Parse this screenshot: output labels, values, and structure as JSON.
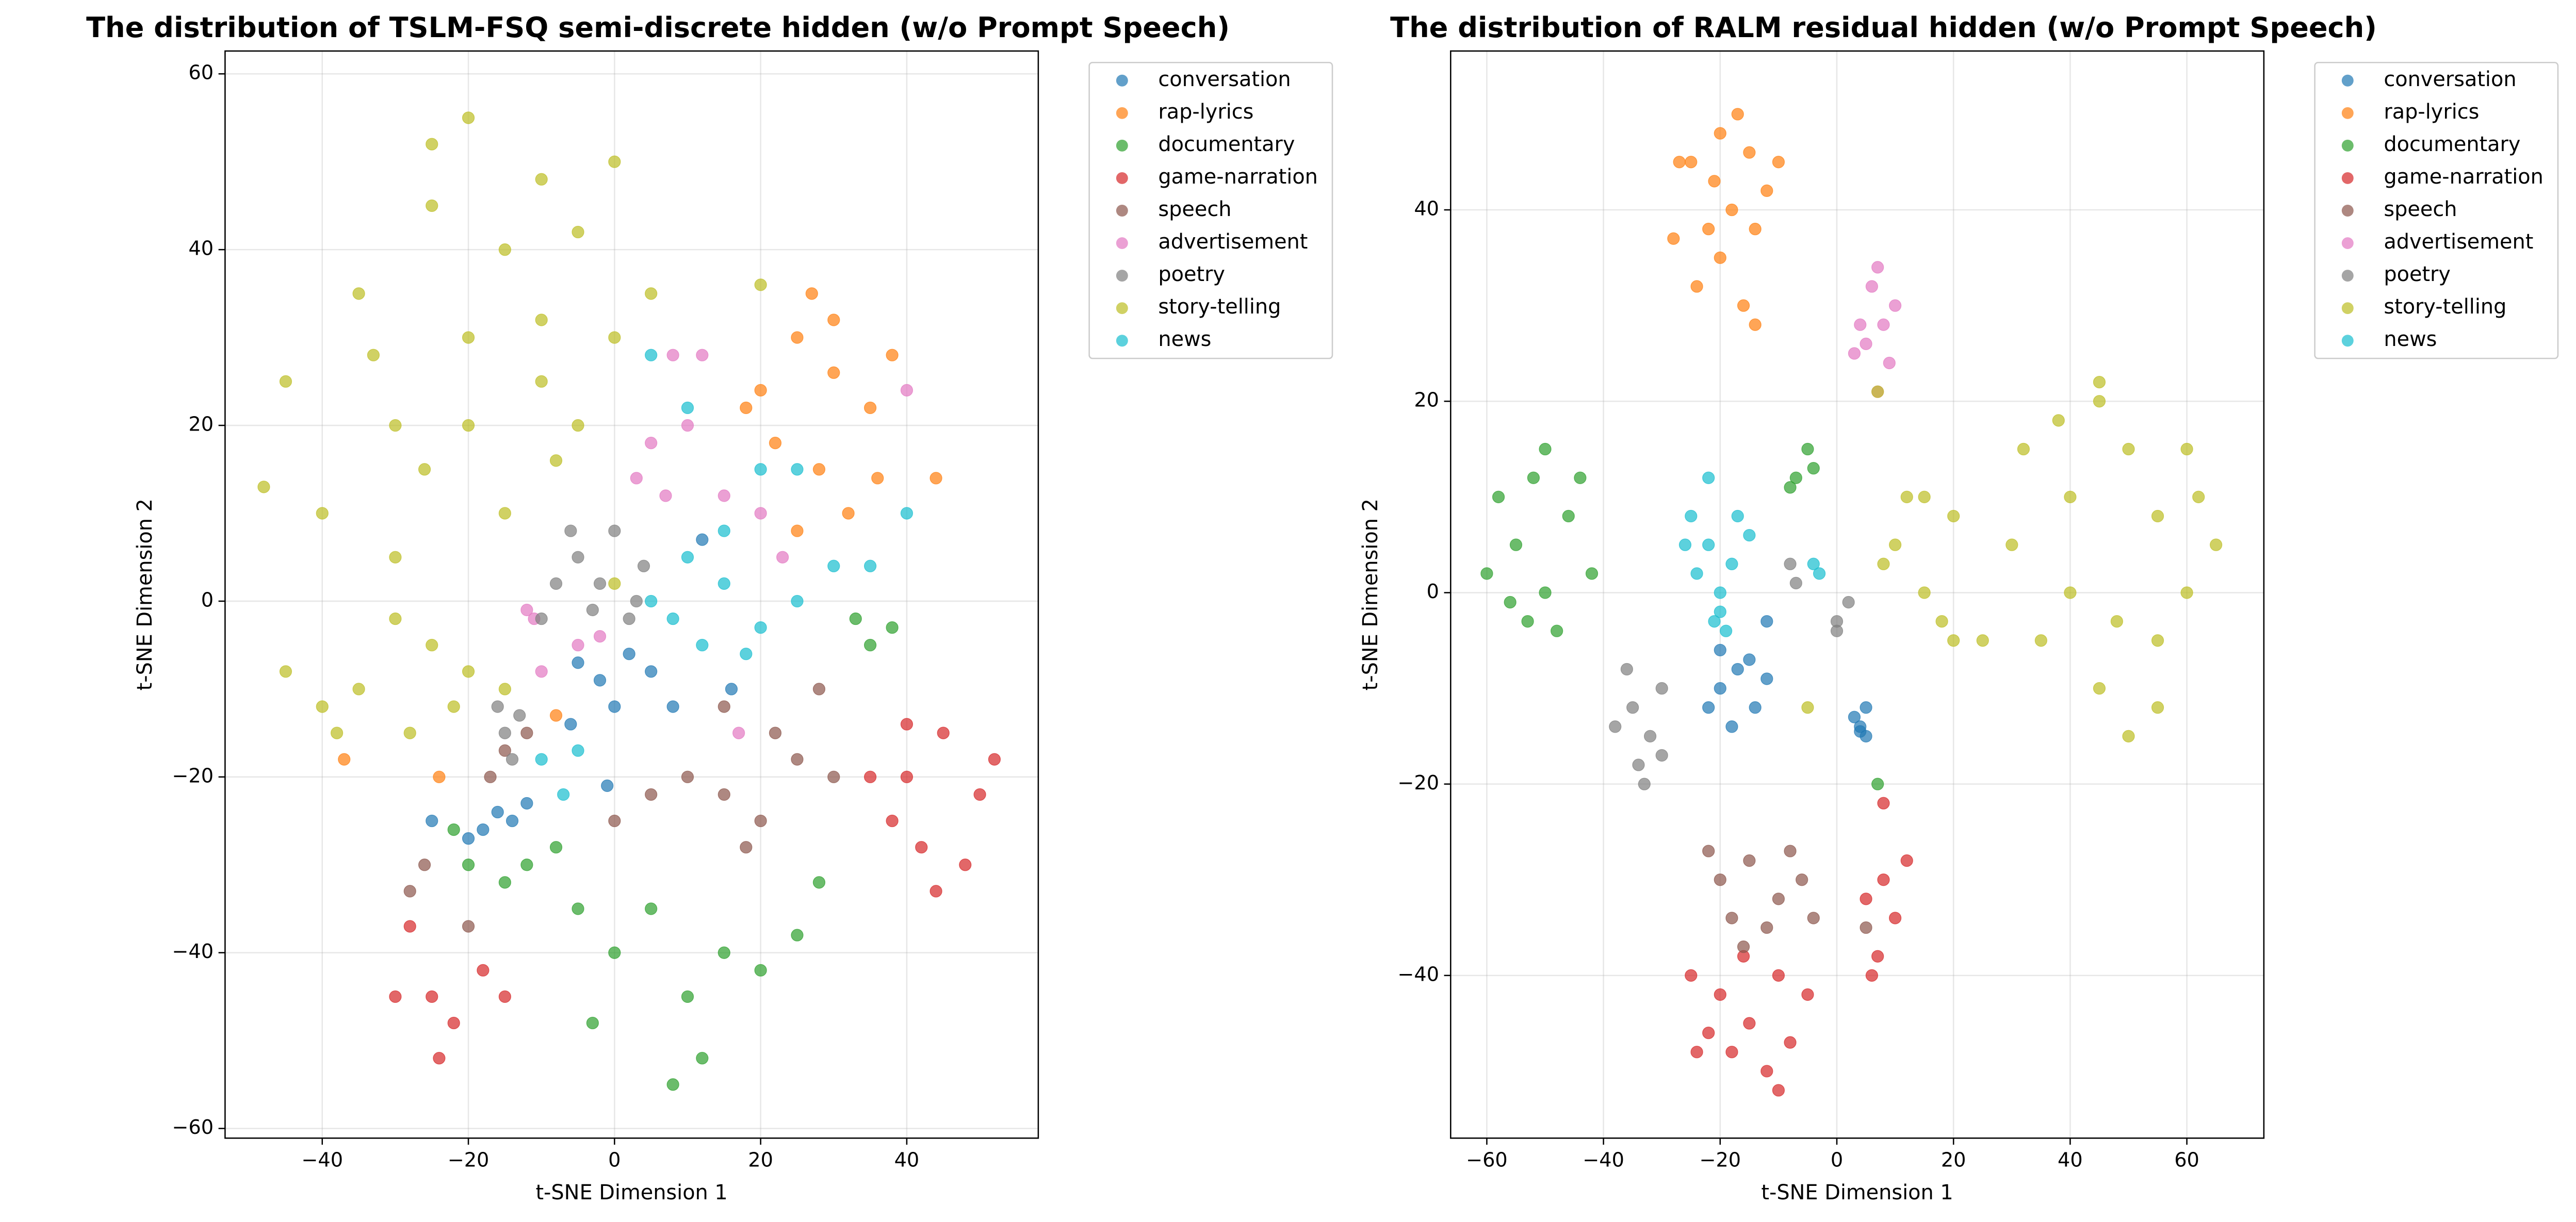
{
  "chart_data": [
    {
      "type": "scatter",
      "title": "The distribution of TSLM-FSQ semi-discrete hidden (w/o Prompt Speech)",
      "xlabel": "t-SNE Dimension 1",
      "ylabel": "t-SNE Dimension 2",
      "xlim": [
        -53.3,
        58
      ],
      "ylim": [
        -61.1,
        62.6
      ],
      "xticks": [
        {
          "value": -40,
          "label": "−40"
        },
        {
          "value": -20,
          "label": "−20"
        },
        0,
        20,
        40
      ],
      "yticks": [
        {
          "value": -60,
          "label": "−60"
        },
        {
          "value": -40,
          "label": "−40"
        },
        {
          "value": -20,
          "label": "−20"
        },
        0,
        20,
        40,
        60
      ],
      "grid": true,
      "legend": "outside right",
      "series": [
        {
          "name": "conversation",
          "color": "#1f77b4",
          "x": [
            -16,
            -14,
            -18,
            -12,
            -20,
            -25,
            -5,
            -2,
            2,
            5,
            8,
            0,
            -6,
            -1,
            12,
            16
          ],
          "y": [
            -24,
            -25,
            -26,
            -23,
            -27,
            -25,
            -7,
            -9,
            -6,
            -8,
            -12,
            -12,
            -14,
            -21,
            7,
            -10
          ]
        },
        {
          "name": "rap-lyrics",
          "color": "#ff7f0e",
          "x": [
            20,
            25,
            30,
            35,
            28,
            32,
            25,
            38,
            27,
            22,
            36,
            30,
            44,
            -37,
            -8,
            -24,
            18
          ],
          "y": [
            24,
            30,
            26,
            22,
            15,
            10,
            8,
            28,
            35,
            18,
            14,
            32,
            14,
            -18,
            -13,
            -20,
            22
          ]
        },
        {
          "name": "documentary",
          "color": "#2ca02c",
          "x": [
            -12,
            -15,
            -8,
            -20,
            -5,
            5,
            0,
            10,
            15,
            12,
            8,
            20,
            -3,
            25,
            35,
            38,
            33,
            28,
            -22
          ],
          "y": [
            -30,
            -32,
            -28,
            -30,
            -35,
            -35,
            -40,
            -45,
            -40,
            -52,
            -55,
            -42,
            -48,
            -38,
            -5,
            -3,
            -2,
            -32,
            -26
          ]
        },
        {
          "name": "game-narration",
          "color": "#d62728",
          "x": [
            40,
            45,
            50,
            42,
            48,
            38,
            44,
            52,
            35,
            -25,
            -22,
            -30,
            -24,
            -18,
            -28,
            -15,
            40
          ],
          "y": [
            -20,
            -15,
            -22,
            -28,
            -30,
            -25,
            -33,
            -18,
            -20,
            -45,
            -48,
            -45,
            -52,
            -42,
            -37,
            -45,
            -14
          ]
        },
        {
          "name": "speech",
          "color": "#8c564b",
          "x": [
            5,
            10,
            15,
            20,
            25,
            15,
            22,
            28,
            30,
            0,
            -28,
            -26,
            -20,
            -17,
            -12,
            -15,
            18
          ],
          "y": [
            -22,
            -20,
            -22,
            -25,
            -18,
            -12,
            -15,
            -10,
            -20,
            -25,
            -33,
            -30,
            -37,
            -20,
            -15,
            -17,
            -28
          ]
        },
        {
          "name": "advertisement",
          "color": "#e377c2",
          "x": [
            5,
            10,
            15,
            20,
            8,
            12,
            3,
            -12,
            -11,
            -10,
            -5,
            17,
            23,
            40,
            -2,
            7
          ],
          "y": [
            18,
            20,
            12,
            10,
            28,
            28,
            14,
            -1,
            -2,
            -8,
            -5,
            -15,
            5,
            24,
            -4,
            12
          ]
        },
        {
          "name": "poetry",
          "color": "#7f7f7f",
          "x": [
            -5,
            0,
            -2,
            3,
            -8,
            -10,
            2,
            -3,
            -6,
            4,
            -15,
            -14,
            -13,
            -16
          ],
          "y": [
            5,
            8,
            2,
            0,
            2,
            -2,
            -2,
            -1,
            8,
            4,
            -15,
            -18,
            -13,
            -12
          ]
        },
        {
          "name": "story-telling",
          "color": "#bcbd22",
          "x": [
            -45,
            -35,
            -25,
            -20,
            -15,
            -10,
            -5,
            0,
            -30,
            -20,
            -10,
            0,
            5,
            -40,
            -30,
            -25,
            -35,
            -40,
            -28,
            -20,
            -15,
            -30,
            -48,
            -45,
            -5,
            -15,
            -20,
            -10,
            -38,
            -22,
            -8,
            -25,
            0,
            20,
            -26,
            -33
          ],
          "y": [
            25,
            35,
            45,
            55,
            40,
            48,
            42,
            50,
            20,
            20,
            25,
            30,
            35,
            10,
            5,
            -5,
            -10,
            -12,
            -15,
            -8,
            -10,
            -2,
            13,
            -8,
            20,
            10,
            30,
            32,
            -15,
            -12,
            16,
            52,
            2,
            36,
            15,
            28
          ]
        },
        {
          "name": "news",
          "color": "#17becf",
          "x": [
            5,
            10,
            15,
            20,
            25,
            30,
            12,
            18,
            8,
            15,
            20,
            25,
            10,
            -5,
            -10,
            -7,
            5,
            35,
            40
          ],
          "y": [
            0,
            5,
            2,
            -3,
            0,
            4,
            -5,
            -6,
            -2,
            8,
            15,
            15,
            22,
            -17,
            -18,
            -22,
            28,
            4,
            10
          ]
        }
      ]
    },
    {
      "type": "scatter",
      "title": "The distribution of RALM residual hidden (w/o Prompt Speech)",
      "xlabel": "t-SNE Dimension 1",
      "ylabel": "t-SNE Dimension 2",
      "xlim": [
        -66.2,
        73.2
      ],
      "ylim": [
        -57,
        56.6
      ],
      "xticks": [
        {
          "value": -60,
          "label": "−60"
        },
        {
          "value": -40,
          "label": "−40"
        },
        {
          "value": -20,
          "label": "−20"
        },
        0,
        20,
        40,
        60
      ],
      "yticks": [
        {
          "value": -40,
          "label": "−40"
        },
        {
          "value": -20,
          "label": "−20"
        },
        0,
        20,
        40
      ],
      "grid": true,
      "legend": "outside right",
      "series": [
        {
          "name": "conversation",
          "color": "#1f77b4",
          "x": [
            -20,
            -17,
            -14,
            -18,
            -15,
            -22,
            -12,
            3,
            4,
            5,
            5,
            4,
            -12,
            -20
          ],
          "y": [
            -10,
            -8,
            -12,
            -14,
            -7,
            -12,
            -9,
            -13,
            -14,
            -12,
            -15,
            -14.5,
            -3,
            -6
          ]
        },
        {
          "name": "rap-lyrics",
          "color": "#ff7f0e",
          "x": [
            -25,
            -20,
            -15,
            -12,
            -22,
            -18,
            -14,
            -20,
            -24,
            -16,
            -28,
            -10,
            -17,
            -21,
            -14,
            -27
          ],
          "y": [
            45,
            48,
            46,
            42,
            38,
            40,
            38,
            35,
            32,
            30,
            37,
            45,
            50,
            43,
            28,
            45
          ]
        },
        {
          "name": "documentary",
          "color": "#2ca02c",
          "x": [
            -58,
            -55,
            -50,
            -52,
            -46,
            -60,
            -53,
            -48,
            -44,
            -56,
            -50,
            -42,
            -7,
            -5,
            -4,
            -8,
            7
          ],
          "y": [
            10,
            5,
            0,
            12,
            8,
            2,
            -3,
            -4,
            12,
            -1,
            15,
            2,
            12,
            15,
            13,
            11,
            -20
          ]
        },
        {
          "name": "game-narration",
          "color": "#d62728",
          "x": [
            -25,
            -20,
            -15,
            -10,
            -18,
            -12,
            -8,
            -22,
            -5,
            -16,
            -10,
            -24,
            5,
            8,
            10,
            7,
            6,
            8,
            12
          ],
          "y": [
            -40,
            -42,
            -45,
            -40,
            -48,
            -50,
            -47,
            -46,
            -42,
            -38,
            -52,
            -48,
            -32,
            -30,
            -34,
            -38,
            -40,
            -22,
            -28
          ]
        },
        {
          "name": "speech",
          "color": "#8c564b",
          "x": [
            -20,
            -15,
            -10,
            -6,
            -18,
            -12,
            -22,
            -8,
            -16,
            5,
            -4
          ],
          "y": [
            -30,
            -28,
            -32,
            -30,
            -34,
            -35,
            -27,
            -27,
            -37,
            -35,
            -34
          ]
        },
        {
          "name": "advertisement",
          "color": "#e377c2",
          "x": [
            5,
            8,
            10,
            6,
            3,
            9,
            7,
            4,
            7
          ],
          "y": [
            26,
            28,
            30,
            32,
            25,
            24,
            34,
            28,
            21
          ]
        },
        {
          "name": "poetry",
          "color": "#7f7f7f",
          "x": [
            -35,
            -32,
            -30,
            -38,
            -34,
            -30,
            -36,
            -33,
            0,
            2,
            0,
            -8,
            -7
          ],
          "y": [
            -12,
            -15,
            -10,
            -14,
            -18,
            -17,
            -8,
            -20,
            -3,
            -1,
            -4,
            3,
            1
          ]
        },
        {
          "name": "story-telling",
          "color": "#bcbd22",
          "x": [
            30,
            40,
            50,
            45,
            55,
            60,
            35,
            45,
            55,
            62,
            48,
            40,
            65,
            32,
            50,
            38,
            60,
            55,
            10,
            15,
            20,
            18,
            12,
            25,
            8,
            20,
            15,
            -5,
            7,
            45
          ],
          "y": [
            5,
            10,
            15,
            20,
            8,
            0,
            -5,
            -10,
            -12,
            10,
            -3,
            0,
            5,
            15,
            -15,
            18,
            15,
            -5,
            5,
            0,
            8,
            -3,
            10,
            -5,
            3,
            -5,
            10,
            -12,
            21,
            22
          ]
        },
        {
          "name": "news",
          "color": "#17becf",
          "x": [
            -25,
            -22,
            -20,
            -18,
            -24,
            -20,
            -17,
            -22,
            -21,
            -15,
            -19,
            -26,
            -4,
            -3
          ],
          "y": [
            8,
            5,
            0,
            3,
            2,
            -2,
            8,
            12,
            -3,
            6,
            -4,
            5,
            3,
            2
          ]
        }
      ]
    }
  ]
}
